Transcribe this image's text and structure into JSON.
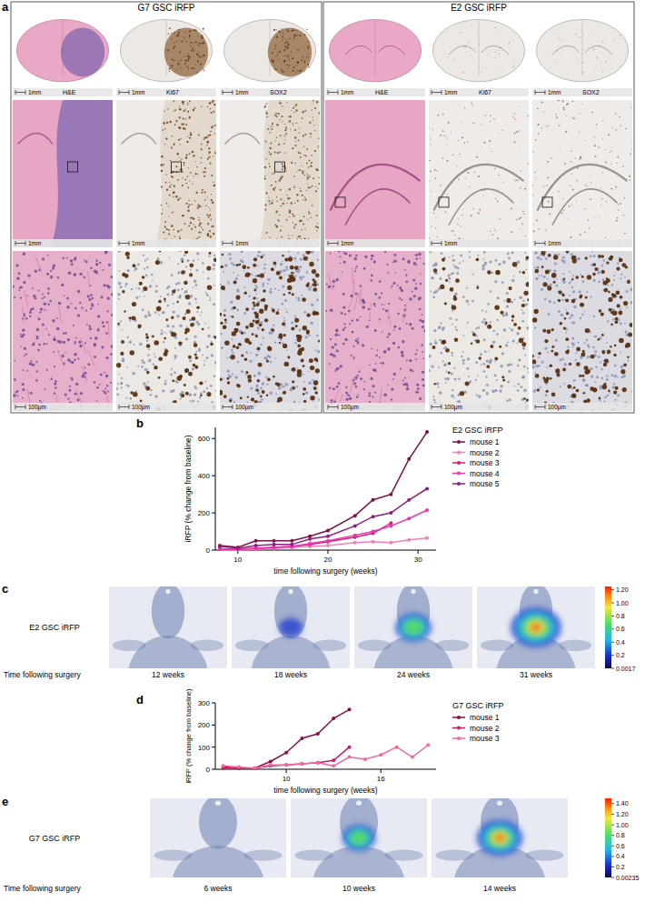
{
  "panel_labels": [
    "a",
    "b",
    "c",
    "d",
    "e"
  ],
  "histology": [
    {
      "title": "G7 GSC iRFP",
      "stains": [
        "H&E",
        "Ki67",
        "SOX2"
      ],
      "scale_bars": [
        "1mm",
        "1mm",
        "100µm"
      ]
    },
    {
      "title": "E2 GSC iRFP",
      "stains": [
        "H&E",
        "Ki67",
        "SOX2"
      ],
      "scale_bars": [
        "1mm",
        "1mm",
        "100µm"
      ]
    }
  ],
  "chart_data": [
    {
      "type": "line",
      "title": "E2 GSC iRFP",
      "x_label": "time following surgery (weeks)",
      "y_label": "iRFP (% change from baseline)",
      "x": [
        8,
        10,
        12,
        14,
        16,
        18,
        20,
        23,
        25,
        27,
        29,
        31
      ],
      "series": [
        {
          "name": "mouse 1",
          "color": "#7b1244",
          "values": [
            25,
            15,
            50,
            50,
            50,
            75,
            105,
            185,
            270,
            300,
            490,
            635
          ]
        },
        {
          "name": "mouse 2",
          "color": "#f27fb5",
          "values": [
            0,
            0,
            5,
            10,
            15,
            20,
            25,
            40,
            45,
            40,
            55,
            65
          ]
        },
        {
          "name": "mouse 3",
          "color": "#d81b7a",
          "values": [
            5,
            5,
            10,
            15,
            20,
            30,
            45,
            70,
            90,
            145,
            null,
            null
          ]
        },
        {
          "name": "mouse 4",
          "color": "#f032b4",
          "values": [
            5,
            5,
            10,
            15,
            20,
            35,
            50,
            80,
            100,
            130,
            170,
            215
          ]
        },
        {
          "name": "mouse 5",
          "color": "#8c1f82",
          "values": [
            20,
            10,
            25,
            30,
            30,
            60,
            75,
            130,
            180,
            200,
            270,
            330
          ]
        }
      ],
      "xlim": [
        7.5,
        32
      ],
      "ylim": [
        0,
        660
      ],
      "xticks": [
        10,
        20,
        30
      ],
      "yticks": [
        0,
        200,
        400,
        600
      ],
      "legend": "right",
      "marker": "circle"
    },
    {
      "type": "line",
      "title": "G7 GSC iRFP",
      "x_label": "time following surgery (weeks)",
      "y_label": "iRFP (% change from baseline)",
      "x": [
        6,
        7,
        8,
        9,
        10,
        11,
        12,
        13,
        14,
        15,
        16,
        17,
        18,
        19
      ],
      "series": [
        {
          "name": "mouse 1",
          "color": "#8a1044",
          "values": [
            10,
            5,
            5,
            35,
            75,
            140,
            160,
            230,
            270,
            null,
            null,
            null,
            null,
            null
          ]
        },
        {
          "name": "mouse 2",
          "color": "#c8186a",
          "values": [
            5,
            5,
            5,
            15,
            20,
            25,
            30,
            40,
            100,
            null,
            null,
            null,
            null,
            null
          ]
        },
        {
          "name": "mouse 3",
          "color": "#f06aa0",
          "values": [
            15,
            10,
            5,
            20,
            20,
            25,
            30,
            15,
            55,
            45,
            65,
            100,
            55,
            110
          ]
        }
      ],
      "xlim": [
        5.5,
        19.5
      ],
      "ylim": [
        0,
        300
      ],
      "xticks": [
        10,
        16
      ],
      "yticks": [
        0,
        100,
        200,
        300
      ],
      "legend": "right",
      "marker": "circle"
    }
  ],
  "imaging": [
    {
      "label": "E2 GSC iRFP",
      "time_label": "Time following surgery",
      "times": [
        "12 weeks",
        "18 weeks",
        "24 weeks",
        "31 weeks"
      ],
      "colorbar": {
        "range": [
          0.0017,
          1.25
        ],
        "ticks": [
          {
            "value": 1.2,
            "label": "1.20"
          },
          {
            "value": 1,
            "label": "1.00"
          },
          0.8,
          0.6,
          0.4,
          0.2,
          0.0017
        ]
      }
    },
    {
      "label": "G7 GSC iRFP",
      "time_label": "Time following surgery",
      "times": [
        "6 weeks",
        "10 weeks",
        "14 weeks"
      ],
      "colorbar": {
        "range": [
          0.00235,
          1.5
        ],
        "ticks": [
          {
            "value": 1.4,
            "label": "1.40"
          },
          {
            "value": 1.2,
            "label": "1.20"
          },
          {
            "value": 1,
            "label": "1.00"
          },
          0.8,
          0.6,
          0.4,
          0.2,
          0.00235
        ]
      }
    }
  ]
}
